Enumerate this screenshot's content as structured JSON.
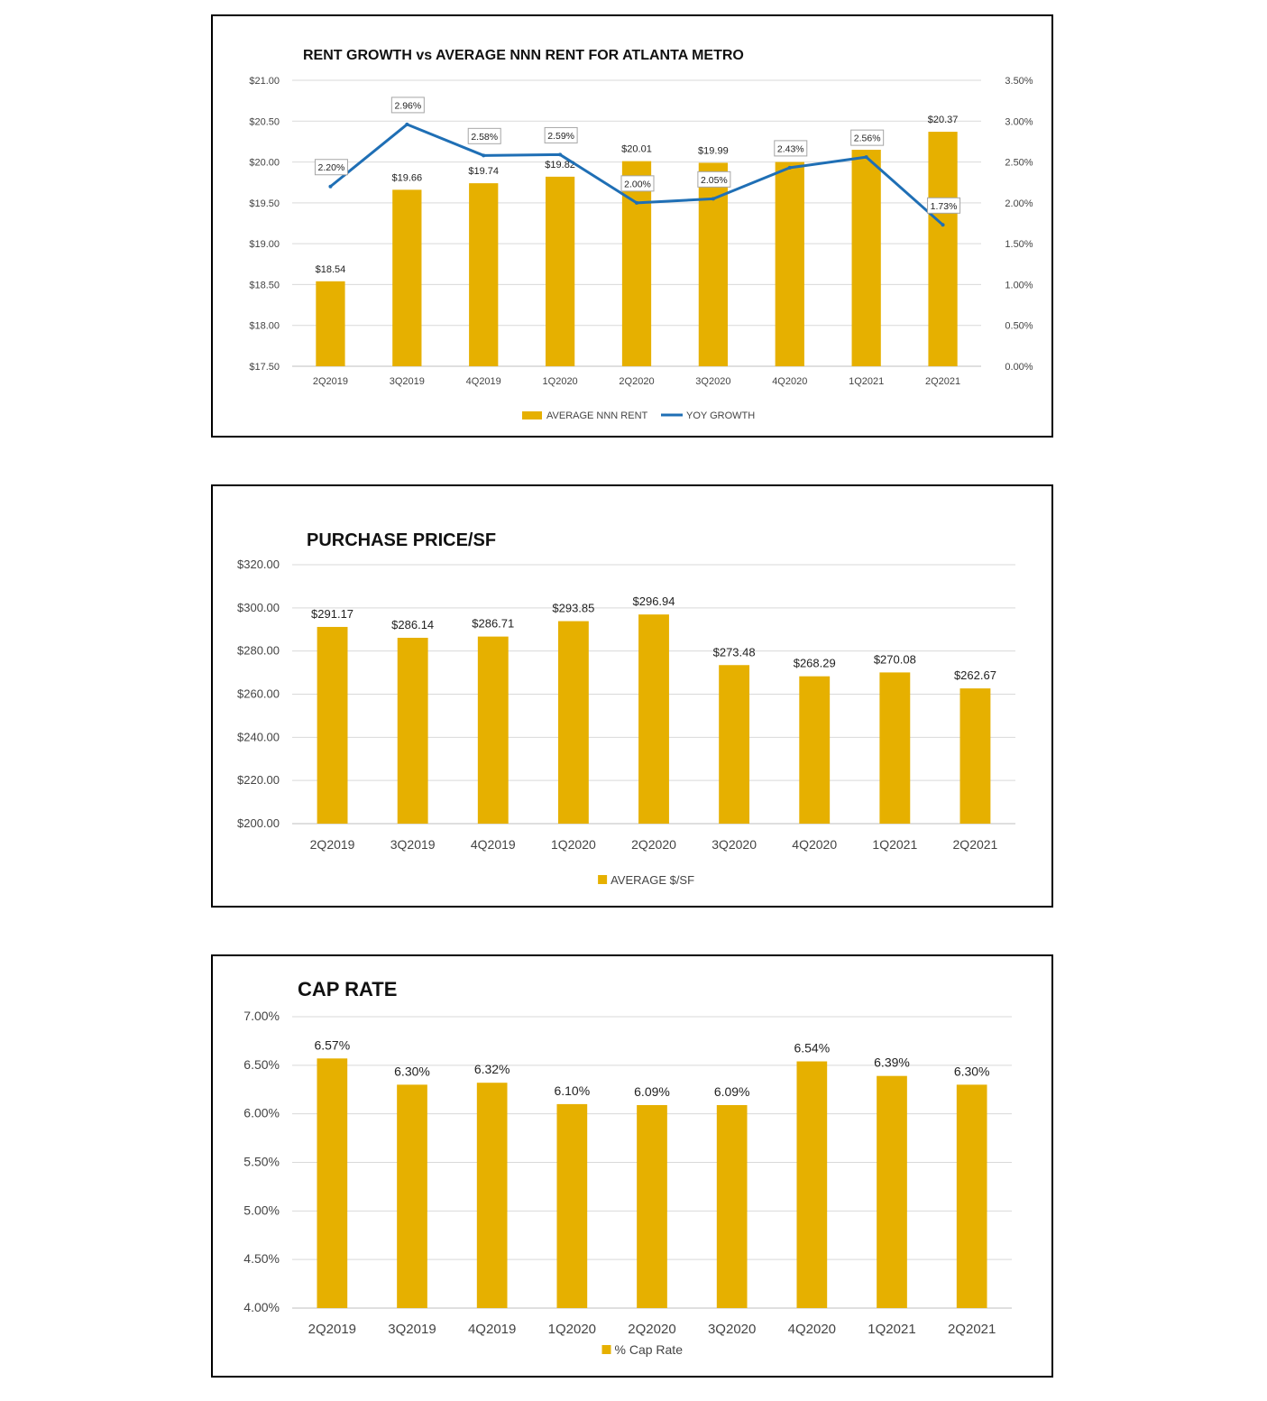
{
  "chart_data": [
    {
      "type": "bar",
      "title": "RENT GROWTH vs AVERAGE NNN RENT FOR ATLANTA METRO",
      "categories": [
        "2Q2019",
        "3Q2019",
        "4Q2019",
        "1Q2020",
        "2Q2020",
        "3Q2020",
        "4Q2020",
        "1Q2021",
        "2Q2021"
      ],
      "series": [
        {
          "name": "AVERAGE NNN RENT",
          "type": "bar",
          "axis": "left",
          "color": "#e6b000",
          "values": [
            18.54,
            19.66,
            19.74,
            19.82,
            20.01,
            19.99,
            20.0,
            20.15,
            20.37
          ],
          "labels": [
            "$18.54",
            "$19.66",
            "$19.74",
            "$19.82",
            "$20.01",
            "$19.99",
            "",
            "",
            "$20.37"
          ]
        },
        {
          "name": "YOY GROWTH",
          "type": "line",
          "axis": "right",
          "color": "#1f6fb5",
          "values": [
            2.2,
            2.96,
            2.58,
            2.59,
            2.0,
            2.05,
            2.43,
            2.56,
            1.73
          ],
          "labels": [
            "2.20%",
            "2.96%",
            "2.58%",
            "2.59%",
            "2.00%",
            "2.05%",
            "2.43%",
            "2.56%",
            "1.73%"
          ]
        }
      ],
      "ylim": [
        17.5,
        21.0
      ],
      "y_ticks": [
        "$17.50",
        "$18.00",
        "$18.50",
        "$19.00",
        "$19.50",
        "$20.00",
        "$20.50",
        "$21.00"
      ],
      "y2lim": [
        0,
        3.5
      ],
      "y2_ticks": [
        "0.00%",
        "0.50%",
        "1.00%",
        "1.50%",
        "2.00%",
        "2.50%",
        "3.00%",
        "3.50%"
      ],
      "legend": "bottom"
    },
    {
      "type": "bar",
      "title": "PURCHASE PRICE/SF",
      "categories": [
        "2Q2019",
        "3Q2019",
        "4Q2019",
        "1Q2020",
        "2Q2020",
        "3Q2020",
        "4Q2020",
        "1Q2021",
        "2Q2021"
      ],
      "series": [
        {
          "name": "AVERAGE $/SF",
          "color": "#e6b000",
          "values": [
            291.17,
            286.14,
            286.71,
            293.85,
            296.94,
            273.48,
            268.29,
            270.08,
            262.67
          ],
          "labels": [
            "$291.17",
            "$286.14",
            "$286.71",
            "$293.85",
            "$296.94",
            "$273.48",
            "$268.29",
            "$270.08",
            "$262.67"
          ]
        }
      ],
      "ylim": [
        200,
        320
      ],
      "y_ticks": [
        "$200.00",
        "$220.00",
        "$240.00",
        "$260.00",
        "$280.00",
        "$300.00",
        "$320.00"
      ],
      "legend": "bottom"
    },
    {
      "type": "bar",
      "title": "CAP RATE",
      "categories": [
        "2Q2019",
        "3Q2019",
        "4Q2019",
        "1Q2020",
        "2Q2020",
        "3Q2020",
        "4Q2020",
        "1Q2021",
        "2Q2021"
      ],
      "series": [
        {
          "name": "% Cap Rate",
          "color": "#e6b000",
          "values": [
            6.57,
            6.3,
            6.32,
            6.1,
            6.09,
            6.09,
            6.54,
            6.39,
            6.3
          ],
          "labels": [
            "6.57%",
            "6.30%",
            "6.32%",
            "6.10%",
            "6.09%",
            "6.09%",
            "6.54%",
            "6.39%",
            "6.30%"
          ]
        }
      ],
      "ylim": [
        4.0,
        7.0
      ],
      "y_ticks": [
        "4.00%",
        "4.50%",
        "5.00%",
        "5.50%",
        "6.00%",
        "6.50%",
        "7.00%"
      ],
      "legend": "bottom"
    }
  ]
}
